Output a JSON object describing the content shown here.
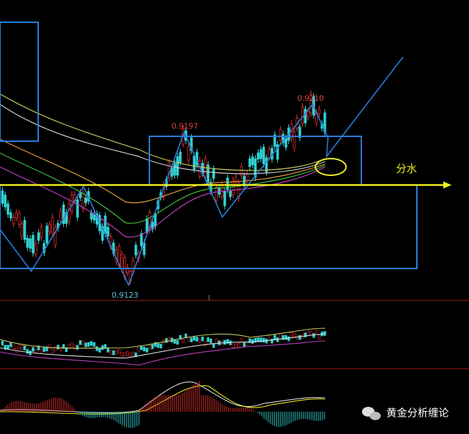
{
  "annotations": {
    "high_label": "0.9210",
    "peak_label": "0.9197",
    "low_label": "0.9123",
    "divider_label": "分水"
  },
  "watermark": "黄金分析缠论"
}
